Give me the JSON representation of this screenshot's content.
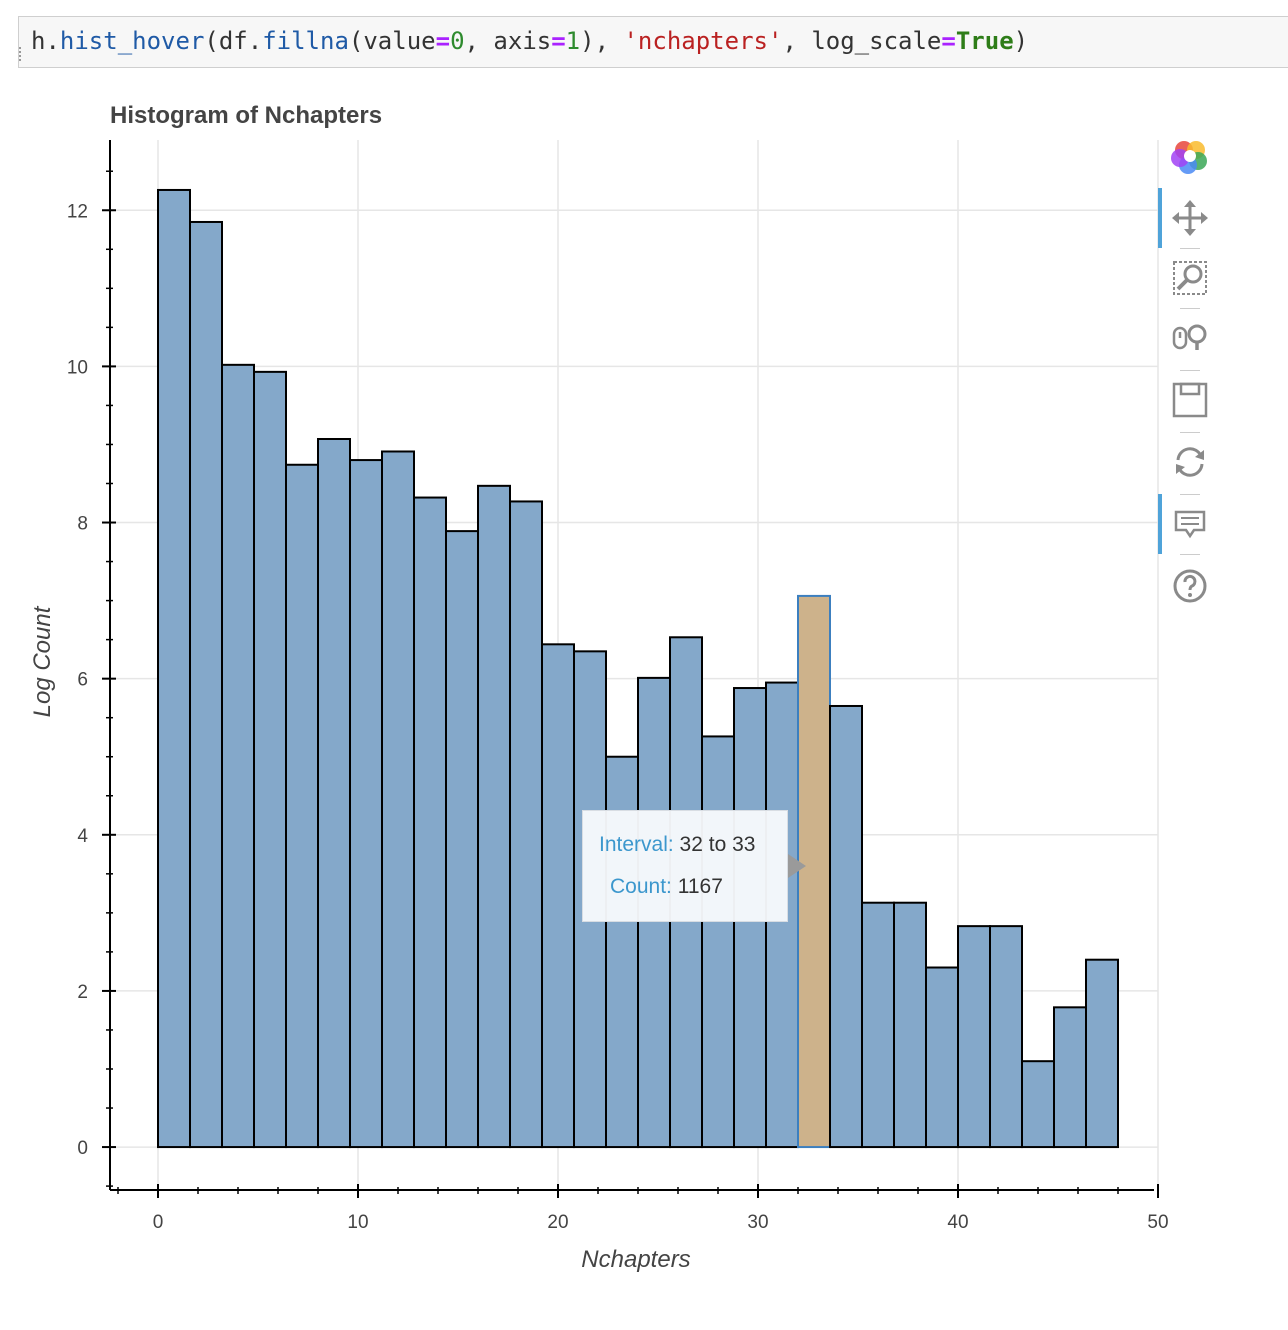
{
  "code": {
    "parts": [
      {
        "text": "h.",
        "cls": ""
      },
      {
        "text": "hist_hover",
        "cls": "tok-fn"
      },
      {
        "text": "(df.",
        "cls": ""
      },
      {
        "text": "fillna",
        "cls": "tok-fn"
      },
      {
        "text": "(value",
        "cls": ""
      },
      {
        "text": "=",
        "cls": "tok-op"
      },
      {
        "text": "0",
        "cls": "tok-num"
      },
      {
        "text": ", axis",
        "cls": ""
      },
      {
        "text": "=",
        "cls": "tok-op"
      },
      {
        "text": "1",
        "cls": "tok-num"
      },
      {
        "text": "), ",
        "cls": ""
      },
      {
        "text": "'nchapters'",
        "cls": "tok-str"
      },
      {
        "text": ", log_scale",
        "cls": ""
      },
      {
        "text": "=",
        "cls": "tok-op"
      },
      {
        "text": "True",
        "cls": "tok-kw"
      },
      {
        "text": ")",
        "cls": ""
      }
    ]
  },
  "chart_data": {
    "type": "bar",
    "title": "Histogram of Nchapters",
    "xlabel": "Nchapters",
    "ylabel": "Log Count",
    "xlim": [
      -2.4,
      50
    ],
    "ylim": [
      -0.55,
      12.9
    ],
    "x_ticks": [
      0,
      10,
      20,
      30,
      40,
      50
    ],
    "y_ticks": [
      0,
      2,
      4,
      6,
      8,
      10,
      12
    ],
    "grid": true,
    "bin_start": 0,
    "bin_width": 1.6,
    "values": [
      12.26,
      11.85,
      10.02,
      9.93,
      8.74,
      9.07,
      8.8,
      8.91,
      8.32,
      7.89,
      8.47,
      8.27,
      6.44,
      6.35,
      5.0,
      6.01,
      6.53,
      5.26,
      5.88,
      5.95,
      7.06,
      5.65,
      3.13,
      3.13,
      2.3,
      2.83,
      2.83,
      1.1,
      1.79,
      2.4
    ],
    "highlight_index": 20,
    "colors": {
      "bar": "#84a8ca",
      "bar_edge": "#000000",
      "highlight": "#cdb28b",
      "highlight_edge": "#3c7fbf",
      "grid": "#e6e6e6"
    }
  },
  "tooltip": {
    "interval_label": "Interval:",
    "interval_value": "32 to 33",
    "count_label": "Count:",
    "count_value": "1167"
  },
  "toolbar": {
    "tools": [
      "bokeh-logo-icon",
      "pan-icon",
      "box-zoom-icon",
      "wheel-zoom-icon",
      "save-icon",
      "reset-icon",
      "hover-icon",
      "help-icon"
    ]
  }
}
